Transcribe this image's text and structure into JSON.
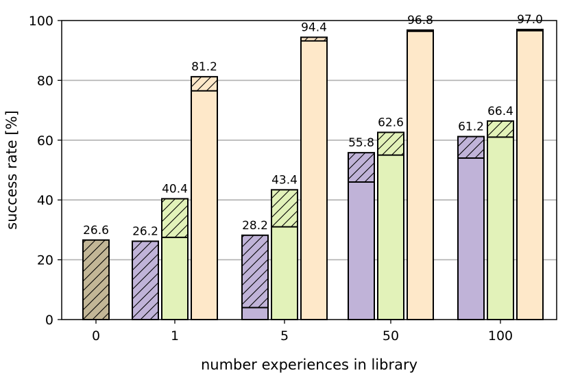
{
  "chart_data": {
    "type": "bar",
    "stacked": true,
    "xlabel": "number experiences in library",
    "ylabel": "success rate [%]",
    "ylim": [
      0,
      100
    ],
    "yticks": [
      0,
      20,
      40,
      60,
      80,
      100
    ],
    "grid": "horizontal",
    "categories": [
      "0",
      "1",
      "5",
      "50",
      "100"
    ],
    "colors": {
      "baseline": "#c2b696",
      "purple": "#c0b3d8",
      "green": "#e2f2b9",
      "orange": "#fee8c9",
      "hatch": "#000000",
      "grid": "#b0b0b0"
    },
    "bars": [
      {
        "category": "0",
        "color": "baseline",
        "solid": 0,
        "total": 26.6,
        "label": "26.6"
      },
      {
        "category": "1",
        "color": "purple",
        "solid": 0,
        "total": 26.2,
        "label": "26.2"
      },
      {
        "category": "1",
        "color": "green",
        "solid": 27.5,
        "total": 40.4,
        "label": "40.4"
      },
      {
        "category": "1",
        "color": "orange",
        "solid": 76.5,
        "total": 81.2,
        "label": "81.2"
      },
      {
        "category": "5",
        "color": "purple",
        "solid": 4.0,
        "total": 28.2,
        "label": "28.2"
      },
      {
        "category": "5",
        "color": "green",
        "solid": 31.0,
        "total": 43.4,
        "label": "43.4"
      },
      {
        "category": "5",
        "color": "orange",
        "solid": 93.2,
        "total": 94.4,
        "label": "94.4"
      },
      {
        "category": "50",
        "color": "purple",
        "solid": 46.0,
        "total": 55.8,
        "label": "55.8"
      },
      {
        "category": "50",
        "color": "green",
        "solid": 55.0,
        "total": 62.6,
        "label": "62.6"
      },
      {
        "category": "50",
        "color": "orange",
        "solid": 96.4,
        "total": 96.8,
        "label": "96.8"
      },
      {
        "category": "100",
        "color": "purple",
        "solid": 54.0,
        "total": 61.2,
        "label": "61.2"
      },
      {
        "category": "100",
        "color": "green",
        "solid": 61.0,
        "total": 66.4,
        "label": "66.4"
      },
      {
        "category": "100",
        "color": "orange",
        "solid": 96.6,
        "total": 97.0,
        "label": "97.0"
      }
    ]
  }
}
